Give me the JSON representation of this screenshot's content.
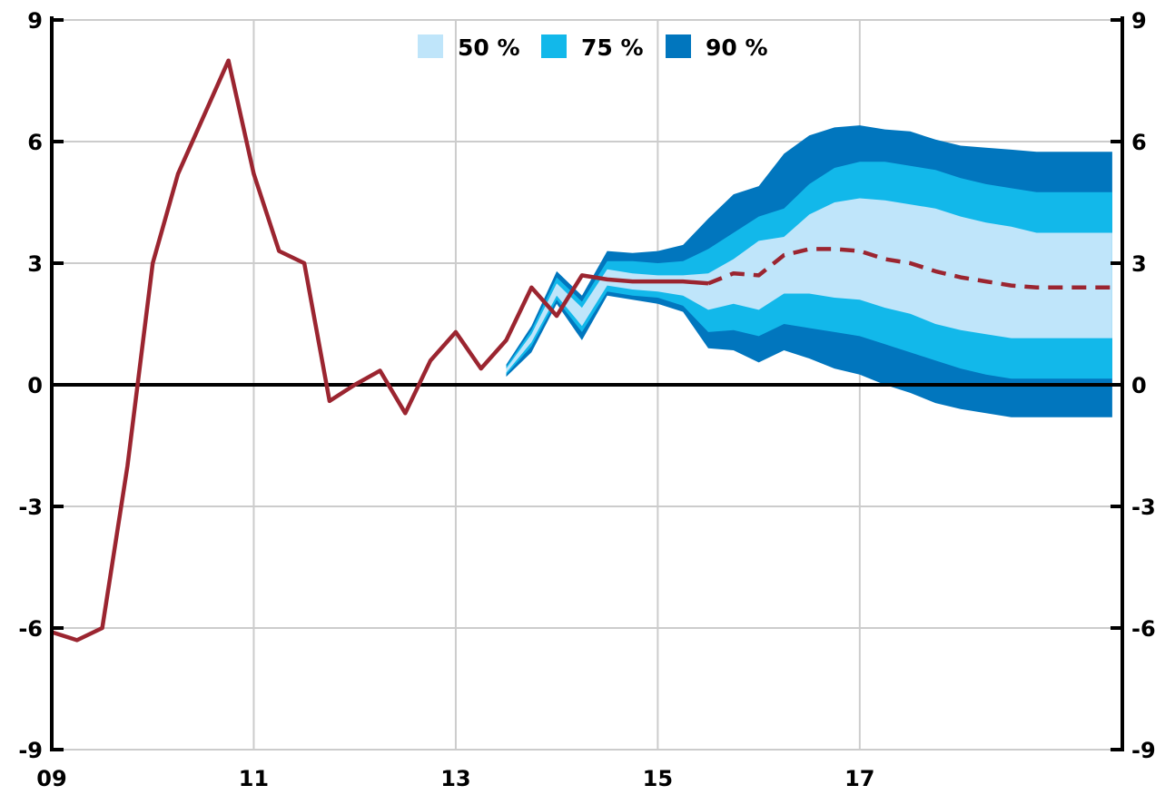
{
  "chart_data": {
    "type": "area",
    "title": "",
    "xlabel": "",
    "ylabel": "",
    "xlim": [
      2009.0,
      2019.6
    ],
    "ylim": [
      -9,
      9
    ],
    "x_ticks": [
      "09",
      "11",
      "13",
      "15",
      "17"
    ],
    "x_tick_values": [
      2009,
      2011,
      2013,
      2015,
      2017
    ],
    "y_ticks": [
      "-9",
      "-6",
      "-3",
      "0",
      "3",
      "6",
      "9"
    ],
    "y_tick_values": [
      -9,
      -6,
      -3,
      0,
      3,
      6,
      9
    ],
    "grid": true,
    "y_axis_both_sides": true,
    "legend": {
      "placement": "top-center",
      "entries": [
        "50 %",
        "75 %",
        "90 %"
      ]
    },
    "colors": {
      "band50": "#bfe5fa",
      "band75": "#12b8ea",
      "band90": "#0176be",
      "line": "#9b2530",
      "grid": "#cccccc",
      "zero": "#000000"
    },
    "series": [
      {
        "line_style": "solid",
        "x": [
          2009.0,
          2009.25,
          2009.5,
          2009.75,
          2010.0,
          2010.25,
          2010.5,
          2010.75,
          2011.0,
          2011.25,
          2011.5,
          2011.75,
          2012.0,
          2012.25,
          2012.5,
          2012.75,
          2013.0,
          2013.25,
          2013.5,
          2013.75,
          2014.0,
          2014.25,
          2014.5,
          2014.75,
          2015.0,
          2015.25,
          2015.5
        ],
        "y": [
          -6.1,
          -6.3,
          -6.0,
          -2.0,
          3.0,
          5.2,
          6.6,
          8.0,
          5.2,
          3.3,
          3.0,
          -0.4,
          0.0,
          0.35,
          -0.7,
          0.6,
          1.3,
          0.4,
          1.1,
          2.4,
          1.7,
          2.7,
          2.6,
          2.55,
          2.55,
          2.55,
          2.5
        ]
      },
      {
        "line_style": "dashed",
        "x": [
          2015.5,
          2015.75,
          2016.0,
          2016.25,
          2016.5,
          2016.75,
          2017.0,
          2017.25,
          2017.5,
          2017.75,
          2018.0,
          2018.25,
          2018.5,
          2018.75,
          2019.0,
          2019.25,
          2019.5
        ],
        "y": [
          2.5,
          2.75,
          2.7,
          3.2,
          3.35,
          3.35,
          3.3,
          3.1,
          3.0,
          2.8,
          2.65,
          2.55,
          2.45,
          2.4,
          2.4,
          2.4,
          2.4
        ]
      }
    ],
    "bands": {
      "x": [
        2013.5,
        2013.75,
        2014.0,
        2014.25,
        2014.5,
        2014.75,
        2015.0,
        2015.25,
        2015.5,
        2015.75,
        2016.0,
        2016.25,
        2016.5,
        2016.75,
        2017.0,
        2017.25,
        2017.5,
        2017.75,
        2018.0,
        2018.25,
        2018.5,
        2018.75,
        2019.0,
        2019.25,
        2019.5
      ],
      "lo90": [
        0.2,
        0.8,
        2.0,
        1.1,
        2.2,
        2.1,
        2.0,
        1.8,
        0.9,
        0.85,
        0.55,
        0.85,
        0.65,
        0.4,
        0.25,
        0.0,
        -0.2,
        -0.45,
        -0.6,
        -0.7,
        -0.8,
        -0.8,
        -0.8,
        -0.8,
        -0.8
      ],
      "lo75": [
        0.25,
        0.95,
        2.1,
        1.3,
        2.3,
        2.2,
        2.15,
        1.95,
        1.3,
        1.35,
        1.2,
        1.5,
        1.4,
        1.3,
        1.2,
        1.0,
        0.8,
        0.6,
        0.4,
        0.25,
        0.15,
        0.15,
        0.15,
        0.15,
        0.15
      ],
      "lo50": [
        0.3,
        1.05,
        2.2,
        1.45,
        2.45,
        2.35,
        2.3,
        2.2,
        1.85,
        2.0,
        1.85,
        2.25,
        2.25,
        2.15,
        2.1,
        1.9,
        1.75,
        1.5,
        1.35,
        1.25,
        1.15,
        1.15,
        1.15,
        1.15,
        1.15
      ],
      "hi50": [
        0.4,
        1.25,
        2.5,
        1.9,
        2.85,
        2.75,
        2.7,
        2.7,
        2.75,
        3.1,
        3.55,
        3.65,
        4.2,
        4.5,
        4.6,
        4.55,
        4.45,
        4.35,
        4.15,
        4.0,
        3.9,
        3.75,
        3.75,
        3.75,
        3.75
      ],
      "hi75": [
        0.45,
        1.35,
        2.65,
        2.05,
        3.05,
        3.05,
        3.0,
        3.05,
        3.35,
        3.75,
        4.15,
        4.35,
        4.95,
        5.35,
        5.5,
        5.5,
        5.4,
        5.3,
        5.1,
        4.95,
        4.85,
        4.75,
        4.75,
        4.75,
        4.75
      ],
      "hi90": [
        0.5,
        1.45,
        2.8,
        2.2,
        3.3,
        3.25,
        3.3,
        3.45,
        4.1,
        4.7,
        4.9,
        5.7,
        6.15,
        6.35,
        6.4,
        6.3,
        6.25,
        6.05,
        5.9,
        5.85,
        5.8,
        5.75,
        5.75,
        5.75,
        5.75
      ]
    }
  }
}
